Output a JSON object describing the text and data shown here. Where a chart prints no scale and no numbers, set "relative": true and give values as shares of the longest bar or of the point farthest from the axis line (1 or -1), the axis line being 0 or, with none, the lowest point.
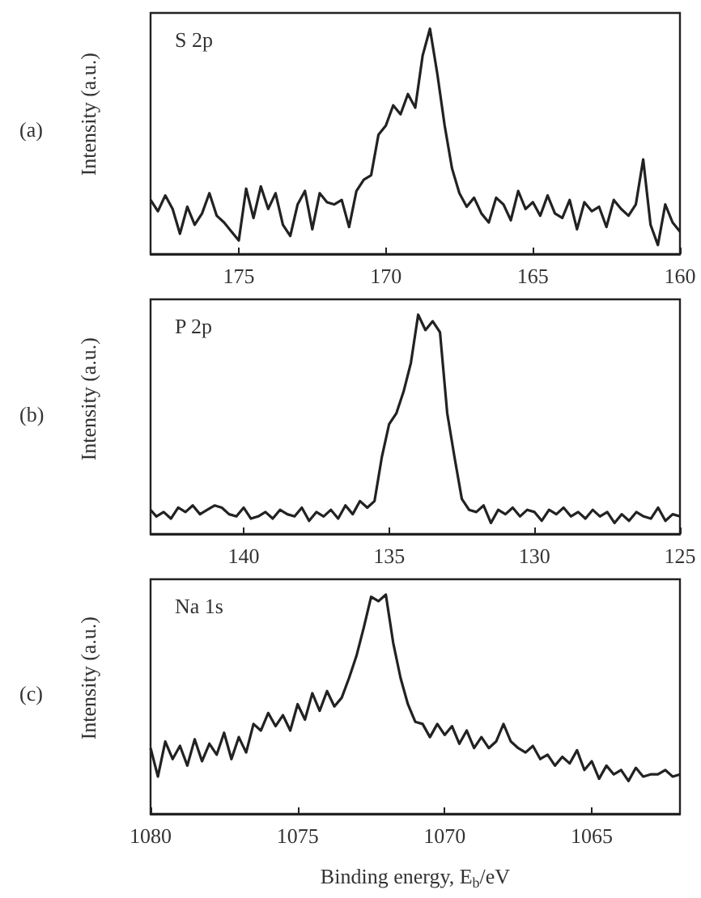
{
  "chart_data": [
    {
      "type": "line",
      "title": "S 2p",
      "ylabel": "Intensity (a.u.)",
      "annotations": [
        "(a)"
      ],
      "relative": true,
      "xlim": [
        178,
        160
      ],
      "xticks": [
        175,
        170,
        165,
        160
      ],
      "x": [
        178,
        177.75,
        177.5,
        177.25,
        177,
        176.75,
        176.5,
        176.25,
        176,
        175.75,
        175.5,
        175.25,
        175,
        174.75,
        174.5,
        174.25,
        174,
        173.75,
        173.5,
        173.25,
        173,
        172.75,
        172.5,
        172.25,
        172,
        171.75,
        171.5,
        171.25,
        171,
        170.75,
        170.5,
        170.25,
        170,
        169.75,
        169.5,
        169.25,
        169,
        168.75,
        168.5,
        168.25,
        168,
        167.75,
        167.5,
        167.25,
        167,
        166.75,
        166.5,
        166.25,
        166,
        165.75,
        165.5,
        165.25,
        165,
        164.75,
        164.5,
        164.25,
        164,
        163.75,
        163.5,
        163.25,
        163,
        162.75,
        162.5,
        162.25,
        162,
        161.75,
        161.5,
        161.25,
        161,
        160.75,
        160.5,
        160.25,
        160
      ],
      "series": [
        {
          "color": "#222222",
          "values": [
            0.24,
            0.19,
            0.26,
            0.2,
            0.09,
            0.21,
            0.13,
            0.18,
            0.27,
            0.17,
            0.14,
            0.1,
            0.06,
            0.29,
            0.16,
            0.3,
            0.2,
            0.27,
            0.13,
            0.08,
            0.22,
            0.28,
            0.11,
            0.27,
            0.23,
            0.22,
            0.24,
            0.12,
            0.28,
            0.33,
            0.35,
            0.53,
            0.57,
            0.66,
            0.62,
            0.71,
            0.65,
            0.88,
            1,
            0.8,
            0.57,
            0.38,
            0.27,
            0.21,
            0.25,
            0.18,
            0.14,
            0.25,
            0.22,
            0.15,
            0.28,
            0.2,
            0.23,
            0.17,
            0.26,
            0.18,
            0.16,
            0.24,
            0.11,
            0.23,
            0.19,
            0.21,
            0.12,
            0.24,
            0.2,
            0.17,
            0.22,
            0.42,
            0.13,
            0.04,
            0.22,
            0.14,
            0.1
          ]
        }
      ]
    },
    {
      "type": "line",
      "title": "P 2p",
      "ylabel": "Intensity (a.u.)",
      "annotations": [
        "(b)"
      ],
      "relative": true,
      "xlim": [
        143.2,
        125
      ],
      "xticks": [
        140,
        135,
        130,
        125
      ],
      "x": [
        143.2,
        143,
        142.75,
        142.5,
        142.25,
        142,
        141.75,
        141.5,
        141.25,
        141,
        140.75,
        140.5,
        140.25,
        140,
        139.75,
        139.5,
        139.25,
        139,
        138.75,
        138.5,
        138.25,
        138,
        137.75,
        137.5,
        137.25,
        137,
        136.75,
        136.5,
        136.25,
        136,
        135.75,
        135.5,
        135.25,
        135,
        134.75,
        134.5,
        134.25,
        134,
        133.75,
        133.5,
        133.25,
        133,
        132.75,
        132.5,
        132.25,
        132,
        131.75,
        131.5,
        131.25,
        131,
        130.75,
        130.5,
        130.25,
        130,
        129.75,
        129.5,
        129.25,
        129,
        128.75,
        128.5,
        128.25,
        128,
        127.75,
        127.5,
        127.25,
        127,
        126.75,
        126.5,
        126.25,
        126,
        125.75,
        125.5,
        125.25,
        125
      ],
      "series": [
        {
          "color": "#222222",
          "values": [
            0.11,
            0.08,
            0.1,
            0.07,
            0.12,
            0.1,
            0.13,
            0.09,
            0.11,
            0.13,
            0.12,
            0.09,
            0.08,
            0.12,
            0.07,
            0.08,
            0.1,
            0.07,
            0.11,
            0.09,
            0.08,
            0.12,
            0.06,
            0.1,
            0.08,
            0.11,
            0.07,
            0.13,
            0.09,
            0.15,
            0.12,
            0.15,
            0.35,
            0.5,
            0.55,
            0.65,
            0.78,
            1,
            0.93,
            0.97,
            0.92,
            0.55,
            0.35,
            0.16,
            0.11,
            0.1,
            0.13,
            0.05,
            0.11,
            0.09,
            0.12,
            0.08,
            0.11,
            0.1,
            0.06,
            0.11,
            0.09,
            0.12,
            0.08,
            0.1,
            0.07,
            0.11,
            0.08,
            0.1,
            0.05,
            0.09,
            0.06,
            0.1,
            0.08,
            0.07,
            0.12,
            0.06,
            0.09,
            0.08
          ]
        }
      ]
    },
    {
      "type": "line",
      "title": "Na 1s",
      "xlabel": "Binding energy, E$_{b}$/eV",
      "ylabel": "Intensity (a.u.)",
      "annotations": [
        "(c)"
      ],
      "relative": true,
      "xlim": [
        1080,
        1062
      ],
      "xticks": [
        1080,
        1075,
        1070,
        1065
      ],
      "x": [
        1080,
        1079.75,
        1079.5,
        1079.25,
        1079,
        1078.75,
        1078.5,
        1078.25,
        1078,
        1077.75,
        1077.5,
        1077.25,
        1077,
        1076.75,
        1076.5,
        1076.25,
        1076,
        1075.75,
        1075.5,
        1075.25,
        1075,
        1074.75,
        1074.5,
        1074.25,
        1074,
        1073.75,
        1073.5,
        1073.25,
        1073,
        1072.75,
        1072.5,
        1072.25,
        1072,
        1071.75,
        1071.5,
        1071.25,
        1071,
        1070.75,
        1070.5,
        1070.25,
        1070,
        1069.75,
        1069.5,
        1069.25,
        1069,
        1068.75,
        1068.5,
        1068.25,
        1068,
        1067.75,
        1067.5,
        1067.25,
        1067,
        1066.75,
        1066.5,
        1066.25,
        1066,
        1065.75,
        1065.5,
        1065.25,
        1065,
        1064.75,
        1064.5,
        1064.25,
        1064,
        1063.75,
        1063.5,
        1063.25,
        1063,
        1062.75,
        1062.5,
        1062.25,
        1062
      ],
      "series": [
        {
          "color": "#222222",
          "values": [
            0.3,
            0.17,
            0.33,
            0.25,
            0.31,
            0.22,
            0.34,
            0.24,
            0.32,
            0.27,
            0.37,
            0.25,
            0.35,
            0.28,
            0.41,
            0.38,
            0.46,
            0.4,
            0.45,
            0.38,
            0.5,
            0.43,
            0.55,
            0.47,
            0.56,
            0.49,
            0.53,
            0.62,
            0.72,
            0.85,
            0.99,
            0.97,
            1,
            0.78,
            0.62,
            0.5,
            0.42,
            0.41,
            0.35,
            0.41,
            0.36,
            0.4,
            0.32,
            0.38,
            0.3,
            0.35,
            0.3,
            0.33,
            0.41,
            0.33,
            0.3,
            0.28,
            0.31,
            0.25,
            0.27,
            0.22,
            0.26,
            0.23,
            0.29,
            0.2,
            0.24,
            0.16,
            0.22,
            0.18,
            0.2,
            0.15,
            0.21,
            0.17,
            0.18,
            0.18,
            0.2,
            0.17,
            0.18
          ]
        }
      ]
    }
  ]
}
